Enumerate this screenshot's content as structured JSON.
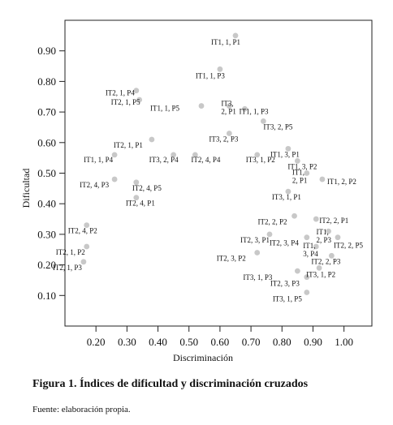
{
  "chart_data": {
    "type": "scatter",
    "xlabel": "Discriminación",
    "ylabel": "Dificultad",
    "xlim": [
      0.1,
      1.09
    ],
    "ylim": [
      0.0,
      1.0
    ],
    "x_ticks": [
      "0.20",
      "0.30",
      "0.40",
      "0.50",
      "0.60",
      "0.70",
      "0.80",
      "0.90",
      "1.00"
    ],
    "y_ticks": [
      "0.10",
      "0.20",
      "0.30",
      "0.40",
      "0.50",
      "0.60",
      "0.70",
      "0.80",
      "0.90"
    ],
    "grid": false,
    "marker_color": "#c8c8c8",
    "points": [
      {
        "label": "IT1, 1, P1",
        "x": 0.65,
        "y": 0.95
      },
      {
        "label": "IT1, 1, P3",
        "x": 0.6,
        "y": 0.84
      },
      {
        "label": "IT2, 1, P4",
        "x": 0.33,
        "y": 0.77
      },
      {
        "label": "IT2, 1, P5",
        "x": 0.34,
        "y": 0.74
      },
      {
        "label": "IT1, 1, P5",
        "x": 0.54,
        "y": 0.72
      },
      {
        "label": "IT3, 2, P1",
        "x": 0.63,
        "y": 0.72
      },
      {
        "label": "IT1, 1, P3",
        "x": 0.68,
        "y": 0.71
      },
      {
        "label": "IT3, 2, P5",
        "x": 0.74,
        "y": 0.67
      },
      {
        "label": "IT3, 2, P3",
        "x": 0.63,
        "y": 0.63
      },
      {
        "label": "IT2, 1, P1",
        "x": 0.38,
        "y": 0.61
      },
      {
        "label": "IT1, 1, P4",
        "x": 0.26,
        "y": 0.56
      },
      {
        "label": "IT3, 2, P4",
        "x": 0.45,
        "y": 0.56
      },
      {
        "label": "IT2, 4, P4",
        "x": 0.52,
        "y": 0.56
      },
      {
        "label": "IT3, 1, P2",
        "x": 0.72,
        "y": 0.56
      },
      {
        "label": "IT1, 3, P1",
        "x": 0.82,
        "y": 0.58
      },
      {
        "label": "IT1, 3, P2",
        "x": 0.85,
        "y": 0.54
      },
      {
        "label": "IT1, 2, P1",
        "x": 0.88,
        "y": 0.5
      },
      {
        "label": "IT1, 2, P2",
        "x": 0.93,
        "y": 0.48
      },
      {
        "label": "IT2, 4, P3",
        "x": 0.26,
        "y": 0.48
      },
      {
        "label": "IT2, 4, P5",
        "x": 0.33,
        "y": 0.47
      },
      {
        "label": "IT2, 4, P1",
        "x": 0.33,
        "y": 0.42
      },
      {
        "label": "IT3, 1, P1",
        "x": 0.82,
        "y": 0.44
      },
      {
        "label": "IT2, 2, P2",
        "x": 0.84,
        "y": 0.36
      },
      {
        "label": "IT2, 2, P1",
        "x": 0.91,
        "y": 0.35
      },
      {
        "label": "IT2, 4, P2",
        "x": 0.17,
        "y": 0.33
      },
      {
        "label": "IT2, 3, P1",
        "x": 0.76,
        "y": 0.3
      },
      {
        "label": "IT1, 2, P3",
        "x": 0.95,
        "y": 0.31
      },
      {
        "label": "IT2, 3, P4",
        "x": 0.88,
        "y": 0.29
      },
      {
        "label": "IT2, 2, P5",
        "x": 0.98,
        "y": 0.29
      },
      {
        "label": "IT2, 1, P2",
        "x": 0.17,
        "y": 0.26
      },
      {
        "label": "IT1, 3, P4",
        "x": 0.91,
        "y": 0.26
      },
      {
        "label": "IT2, 3, P2",
        "x": 0.72,
        "y": 0.24
      },
      {
        "label": "IT2, 2, P3",
        "x": 0.96,
        "y": 0.23
      },
      {
        "label": "IT2, 1, P3",
        "x": 0.16,
        "y": 0.21
      },
      {
        "label": "IT3, 1, P3",
        "x": 0.85,
        "y": 0.18
      },
      {
        "label": "IT3, 1, P2",
        "x": 0.92,
        "y": 0.19
      },
      {
        "label": "IT2, 3, P3",
        "x": 0.88,
        "y": 0.16
      },
      {
        "label": "IT3, 1, P5",
        "x": 0.88,
        "y": 0.11
      }
    ]
  },
  "figure": {
    "caption": "Figura 1. Índices de dificultad y discriminación cruzados",
    "source": "Fuente: elaboración propia."
  }
}
